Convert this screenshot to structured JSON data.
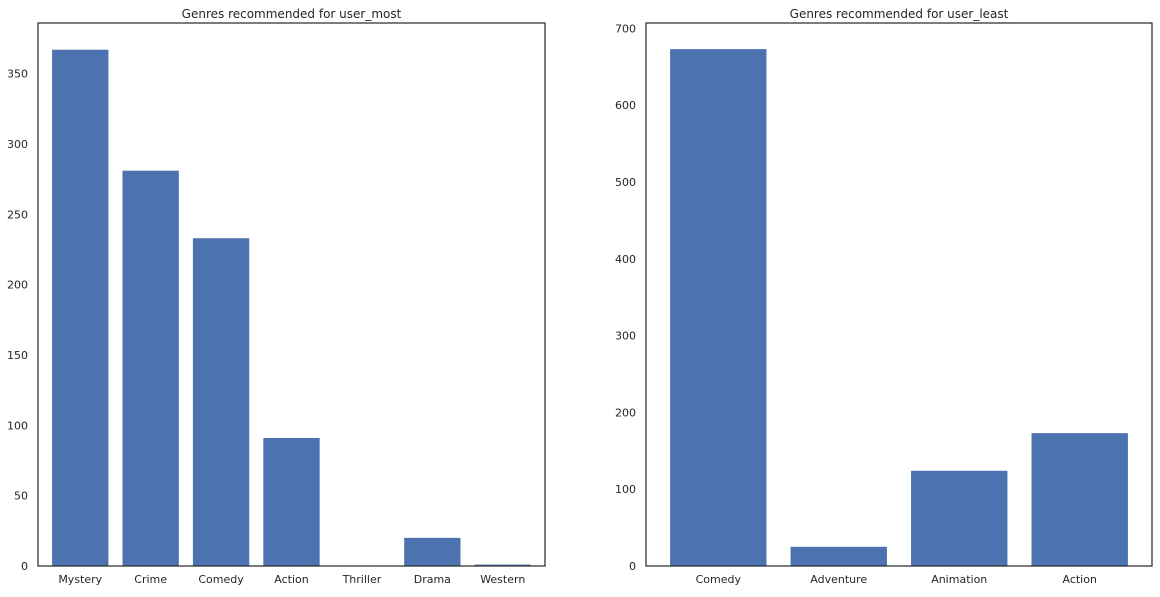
{
  "chart_data": [
    {
      "type": "bar",
      "title": "Genres recommended for user_most",
      "categories": [
        "Mystery",
        "Crime",
        "Comedy",
        "Action",
        "Thriller",
        "Drama",
        "Western"
      ],
      "values": [
        367,
        281,
        233,
        91,
        0,
        20,
        1
      ],
      "ylim": [
        0,
        386
      ],
      "yticks": [
        0,
        50,
        100,
        150,
        200,
        250,
        300,
        350
      ],
      "xlabel": "",
      "ylabel": "",
      "grid": false,
      "color": "#4c72b0"
    },
    {
      "type": "bar",
      "title": "Genres recommended for user_least",
      "categories": [
        "Comedy",
        "Adventure",
        "Animation",
        "Action"
      ],
      "values": [
        673,
        25,
        124,
        173
      ],
      "ylim": [
        0,
        707
      ],
      "yticks": [
        0,
        100,
        200,
        300,
        400,
        500,
        600,
        700
      ],
      "xlabel": "",
      "ylabel": "",
      "grid": false,
      "color": "#4c72b0"
    }
  ]
}
